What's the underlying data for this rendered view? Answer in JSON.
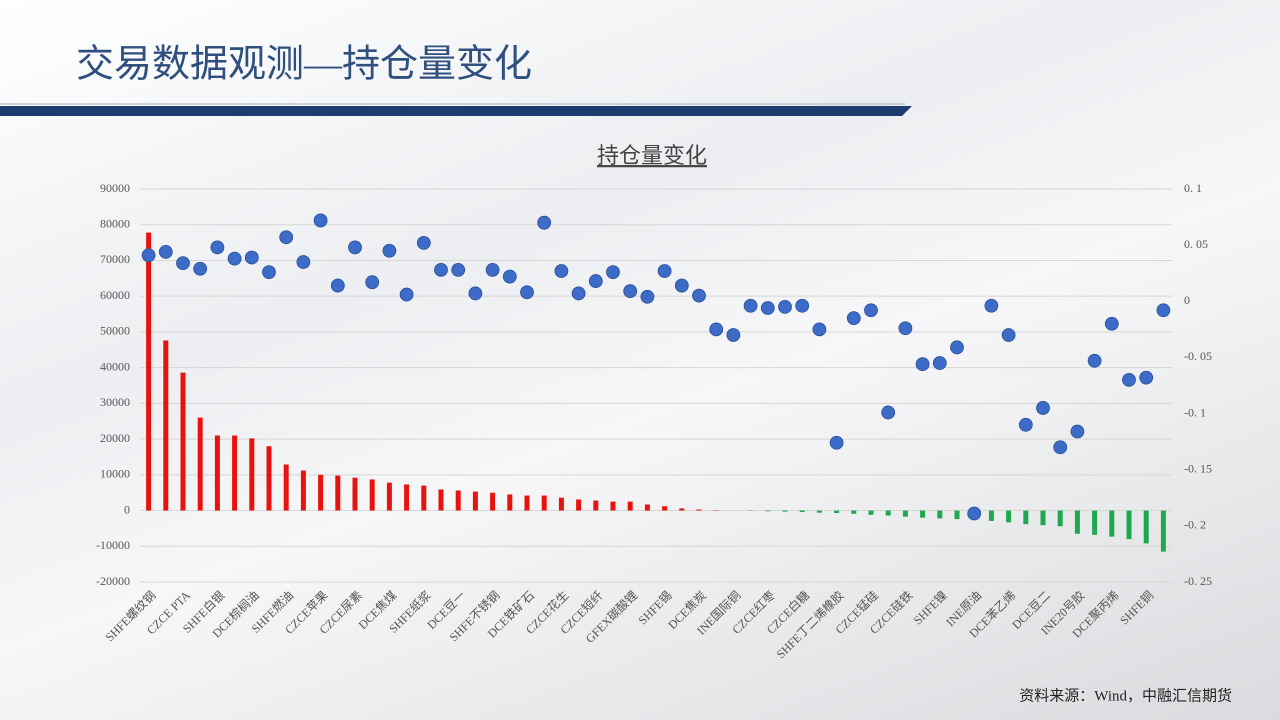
{
  "header": {
    "title": "交易数据观测—持仓量变化"
  },
  "source": "资料来源：Wind，中融汇信期货",
  "chart_data": {
    "type": "bar",
    "title": "持仓量变化",
    "categories": [
      "SHFE螺纹钢",
      null,
      "CZCE PTA",
      null,
      "SHFE白银",
      null,
      "DCE棕榈油",
      null,
      "SHFE燃油",
      null,
      "CZCE苹果",
      null,
      "CZCE尿素",
      null,
      "DCE焦煤",
      null,
      "SHFE纸浆",
      null,
      "DCE豆一",
      null,
      "SHFE不锈钢",
      null,
      "DCE铁矿石",
      null,
      "CZCE花生",
      null,
      "CZCE短纤",
      null,
      "GFEX碳酸锂",
      null,
      "SHFE锡",
      null,
      "DCE焦炭",
      null,
      "INE国际铜",
      null,
      "CZCE红枣",
      null,
      "CZCE白糖",
      null,
      "SHFE丁二烯橡胶",
      null,
      "CZCE锰硅",
      null,
      "CZCE硅铁",
      null,
      "SHFE镍",
      null,
      "INE原油",
      null,
      "DCE苯乙烯",
      null,
      "DCE豆二",
      null,
      "INE20号胶",
      null,
      "DCE聚丙烯",
      null,
      "SHFE铜",
      null
    ],
    "series": [
      {
        "type": "bar",
        "color": "#e8130f",
        "negative_color": "#1ea84f",
        "values": [
          77800,
          47600,
          38600,
          26000,
          21000,
          21000,
          20200,
          18000,
          12900,
          11200,
          10000,
          9800,
          9200,
          8700,
          7800,
          7300,
          7000,
          5900,
          5600,
          5300,
          5000,
          4500,
          4200,
          4200,
          3600,
          3100,
          2800,
          2500,
          2500,
          1700,
          1200,
          600,
          300,
          100,
          0,
          -100,
          -200,
          -300,
          -400,
          -600,
          -700,
          -900,
          -1200,
          -1400,
          -1700,
          -2000,
          -2200,
          -2400,
          -2600,
          -2900,
          -3300,
          -3800,
          -4100,
          -4400,
          -6500,
          -6800,
          -7300,
          -8000,
          -9200,
          -11500
        ]
      },
      {
        "type": "scatter",
        "axis": "y2",
        "color": "#3d6cc8",
        "values": [
          0.041,
          0.044,
          0.034,
          0.029,
          0.048,
          0.038,
          0.039,
          0.026,
          0.057,
          0.035,
          0.072,
          0.014,
          0.048,
          0.017,
          0.045,
          0.006,
          0.052,
          0.028,
          0.028,
          0.007,
          0.028,
          0.022,
          0.008,
          0.07,
          0.027,
          0.007,
          0.018,
          0.026,
          0.009,
          0.004,
          0.027,
          0.014,
          0.005,
          -0.025,
          -0.03,
          -0.004,
          -0.006,
          -0.005,
          -0.004,
          -0.025,
          -0.126,
          -0.015,
          -0.008,
          -0.099,
          -0.024,
          -0.056,
          -0.055,
          -0.041,
          -0.189,
          -0.004,
          -0.03,
          -0.11,
          -0.095,
          -0.13,
          -0.116,
          -0.053,
          -0.02,
          -0.07,
          -0.068,
          -0.008
        ]
      }
    ],
    "ylim": [
      -20000,
      90000
    ],
    "yticks": [
      90000,
      80000,
      70000,
      60000,
      50000,
      40000,
      30000,
      20000,
      10000,
      0,
      -10000,
      -20000
    ],
    "y2lim": [
      -0.25,
      0.1
    ],
    "y2ticks": [
      {
        "value": 0.1,
        "label": "0. 1"
      },
      {
        "value": 0.05,
        "label": "0. 05"
      },
      0,
      {
        "value": -0.05,
        "label": "-0. 05"
      },
      {
        "value": -0.1,
        "label": "-0. 1"
      },
      {
        "value": -0.15,
        "label": "-0. 15"
      },
      {
        "value": -0.2,
        "label": "-0. 2"
      },
      {
        "value": -0.25,
        "label": "-0. 25"
      }
    ],
    "grid": true
  }
}
